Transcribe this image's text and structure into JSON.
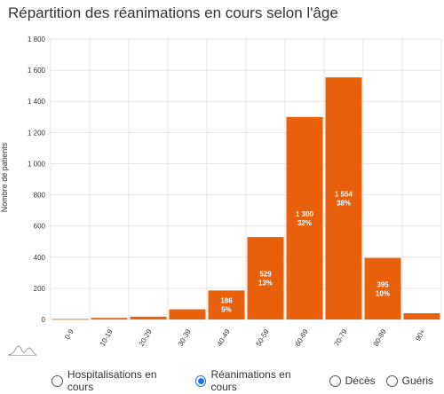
{
  "title": "Répartition des réanimations en cours selon l'âge",
  "colors": {
    "bar": "#e8600c",
    "grid": "#e6e6e6",
    "axis_text": "#333333",
    "radio_selected": "#1a73e8"
  },
  "chart_data": {
    "type": "bar",
    "title": "Répartition des réanimations en cours selon l'âge",
    "xlabel": "",
    "ylabel": "Nombre de patients",
    "categories": [
      "0-9",
      "10-19",
      "20-29",
      "30-39",
      "40-49",
      "50-59",
      "60-69",
      "70-79",
      "80-89",
      "90+"
    ],
    "values": [
      3,
      10,
      18,
      65,
      186,
      529,
      1300,
      1554,
      395,
      40
    ],
    "data_labels": [
      "",
      "",
      "",
      "",
      "186\n5%",
      "529\n13%",
      "1 300\n32%",
      "1 554\n38%",
      "395\n10%",
      ""
    ],
    "ylim": [
      0,
      1800
    ],
    "yticks": [
      0,
      200,
      400,
      600,
      800,
      1000,
      1200,
      1400,
      1600,
      1800
    ],
    "ytick_labels": [
      "0",
      "200",
      "400",
      "600",
      "800",
      "1 000",
      "1 200",
      "1 400",
      "1 600",
      "1 800"
    ],
    "grid": true
  },
  "legend": {
    "options": [
      {
        "label": "Hospitalisations en cours",
        "selected": false
      },
      {
        "label": "Réanimations en cours",
        "selected": true
      },
      {
        "label": "Décès",
        "selected": false
      },
      {
        "label": "Guéris",
        "selected": false
      }
    ]
  },
  "icons": {
    "mini_chart": "trend-line-icon"
  }
}
